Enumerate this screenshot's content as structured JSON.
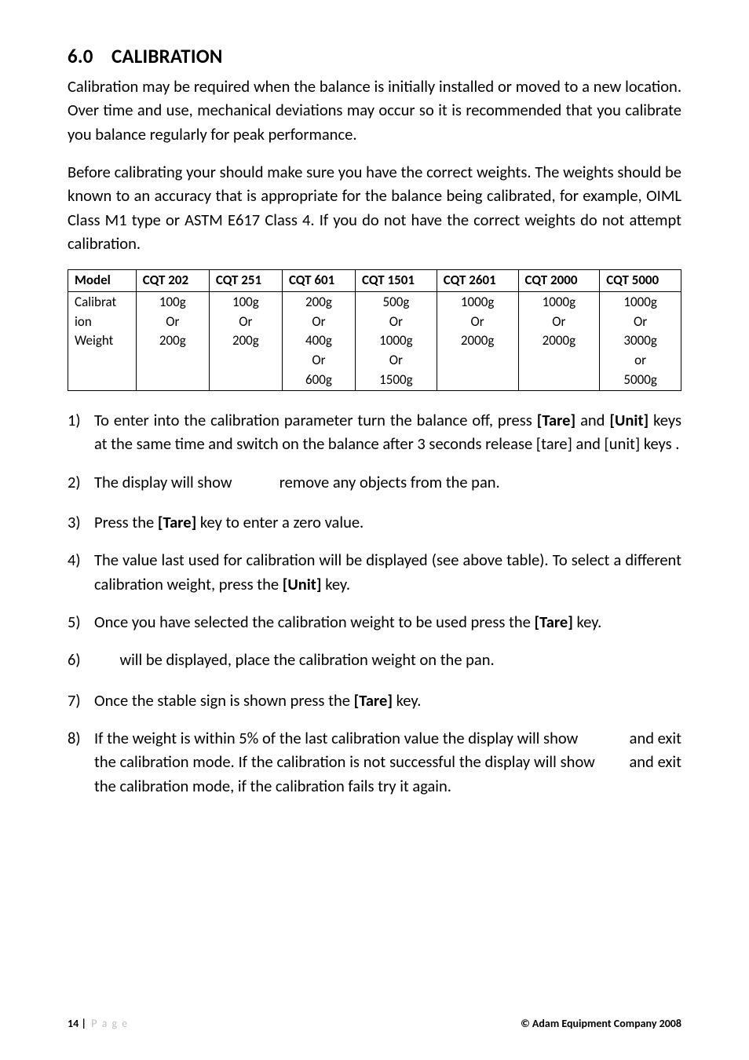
{
  "section": {
    "number": "6.0",
    "title": "CALIBRATION"
  },
  "paragraphs": {
    "p1": "Calibration may be required when the balance is initially installed or moved to a new location. Over time and use, mechanical deviations may occur so it is recommended that you calibrate you balance regularly for peak performance.",
    "p2": "Before calibrating your should make sure you have the correct weights. The weights should be known to an accuracy that is appropriate for the balance being calibrated, for example, OIML Class M1 type or ASTM E617 Class 4. If you do not have the correct weights do not attempt calibration."
  },
  "table": {
    "headers": [
      "Model",
      "CQT 202",
      "CQT 251",
      "CQT 601",
      "CQT 1501",
      "CQT 2601",
      "CQT 2000",
      "CQT 5000"
    ],
    "rowhead": [
      "Calibrat",
      "ion",
      "Weight"
    ],
    "cols": {
      "c1": [
        "",
        "100g",
        "Or",
        "200g",
        ""
      ],
      "c2": [
        "",
        "100g",
        "Or",
        "200g",
        ""
      ],
      "c3": [
        "200g",
        "Or",
        "400g",
        "Or",
        "600g"
      ],
      "c4": [
        "500g",
        "Or",
        "1000g",
        "Or",
        "1500g"
      ],
      "c5": [
        "",
        "1000g",
        "Or",
        "2000g",
        ""
      ],
      "c6": [
        "",
        "1000g",
        "Or",
        "2000g",
        ""
      ],
      "c7": [
        "1000g",
        "Or",
        "3000g",
        "or",
        "5000g"
      ]
    }
  },
  "steps": {
    "s1a": "To enter into the calibration parameter turn the balance off, press  ",
    "s1_tare": "[Tare]",
    "s1b": " and ",
    "s1_unit": "[Unit]",
    "s1c": " keys at the same time and switch on the balance after 3 seconds release [tare] and [unit] keys .",
    "s2a": "The display will show ",
    "s2b": "            remove any objects from the pan.",
    "s3a": "Press the ",
    "s3_tare": "[Tare]",
    "s3b": " key to enter a zero value.",
    "s4a": "The value last used for calibration will be displayed (see above table). To select a different calibration weight, press the ",
    "s4_unit": "[Unit]",
    "s4b": " key.",
    "s5a": "Once you have selected the calibration weight to be used press the ",
    "s5_tare": "[Tare]",
    "s5b": " key.",
    "s6a": "       will be displayed, place the calibration weight on the pan.",
    "s7a": "Once the stable sign is shown press the ",
    "s7_tare": "[Tare]",
    "s7b": " key.",
    "s8a": "If the weight is within 5% of the last calibration value the display will show              and exit the calibration mode. If the calibration is not successful the display will show         and exit the calibration mode, if the calibration fails try it again."
  },
  "footer": {
    "page_num": "14 |",
    "page_label": "P a g e",
    "copyright": "© Adam Equipment Company 2008"
  }
}
